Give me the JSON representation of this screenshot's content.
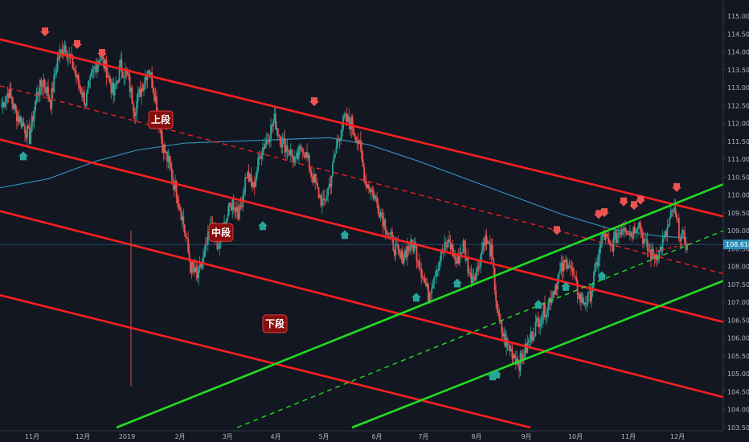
{
  "chart_data": {
    "type": "candlestick",
    "ylim": [
      103.5,
      115.3
    ],
    "y_ticks": [
      "115.000",
      "114.500",
      "114.000",
      "113.500",
      "113.000",
      "112.500",
      "112.000",
      "111.500",
      "111.000",
      "110.500",
      "110.000",
      "109.500",
      "109.000",
      "108.500",
      "108.000",
      "107.500",
      "107.000",
      "106.500",
      "106.000",
      "105.500",
      "105.000",
      "104.500",
      "104.000",
      "103.500"
    ],
    "x_ticks": [
      "11月",
      "12月",
      "2019",
      "2月",
      "3月",
      "4月",
      "5月",
      "6月",
      "7月",
      "8月",
      "9月",
      "10月",
      "11月",
      "12月"
    ],
    "current_price": "108.618",
    "zones": [
      "上段",
      "中段",
      "下段"
    ],
    "colors": {
      "up": "#26a69a",
      "down": "#ef5350",
      "channel_red": "#ff1f1f",
      "channel_green": "#22dd22",
      "ma": "#2f8fb9",
      "bg": "#131722",
      "arrow_up": "#26a69a",
      "arrow_down": "#ef5350"
    },
    "grid": false,
    "series": [
      {
        "values": [
          112.5,
          112.9,
          112.3,
          112.0,
          111.6,
          112.8,
          113.2,
          112.6,
          113.8,
          114.2,
          113.7,
          113.1,
          112.6,
          113.4,
          113.9,
          113.5,
          112.8,
          113.6,
          113.3,
          112.4,
          113.0,
          113.6,
          112.7,
          111.4,
          110.8,
          110.1,
          109.2,
          108.0,
          107.7,
          108.3,
          109.2,
          108.4,
          109.3,
          109.8,
          109.5,
          110.6,
          110.2,
          111.2,
          111.6,
          112.1,
          111.5,
          111.3,
          110.9,
          111.4,
          110.8,
          110.2,
          109.7,
          110.4,
          111.5,
          112.1,
          112.0,
          111.5,
          110.4,
          110.1,
          109.6,
          109.1,
          108.6,
          108.2,
          108.5,
          108.6,
          107.9,
          107.2,
          107.9,
          108.4,
          108.7,
          108.1,
          108.6,
          107.7,
          107.9,
          108.8,
          108.4,
          106.5,
          105.9,
          105.6,
          105.3,
          105.7,
          106.2,
          106.6,
          106.9,
          107.4,
          107.9,
          108.2,
          107.5,
          107.0,
          107.1,
          108.0,
          108.9,
          108.5,
          108.9,
          109.2,
          108.9,
          109.3,
          108.6,
          108.3,
          108.4,
          108.9,
          109.6,
          108.9,
          108.62
        ]
      }
    ]
  }
}
